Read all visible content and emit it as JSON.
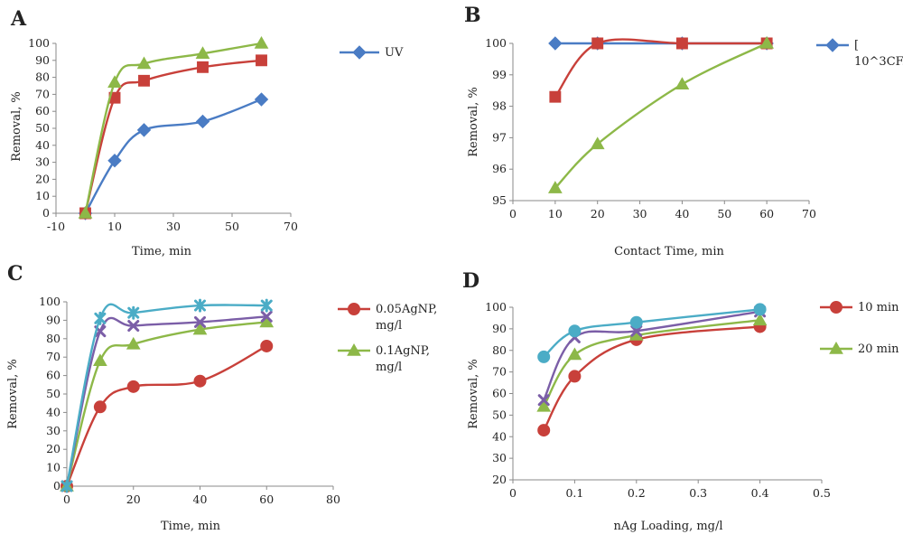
{
  "chart_data": [
    {
      "panel_label": "A",
      "type": "line",
      "xlabel": "Time, min",
      "ylabel": "Removal, %",
      "xlim": [
        -10,
        70
      ],
      "ylim": [
        0,
        100
      ],
      "xticks": [
        -10,
        10,
        30,
        50,
        70
      ],
      "yticks": [
        0,
        10,
        20,
        30,
        40,
        50,
        60,
        70,
        80,
        90,
        100
      ],
      "grid": false,
      "legend_position": "right",
      "series": [
        {
          "name": "UV",
          "color": "#4a7cc4",
          "marker": "diamond",
          "x": [
            0,
            10,
            20,
            40,
            60
          ],
          "values": [
            0,
            31,
            49,
            54,
            67
          ]
        },
        {
          "color": "#c8403a",
          "marker": "square",
          "x": [
            0,
            10,
            20,
            40,
            60
          ],
          "values": [
            0,
            68,
            78,
            86,
            90
          ]
        },
        {
          "color": "#8db848",
          "marker": "triangle",
          "x": [
            0,
            10,
            20,
            40,
            60
          ],
          "values": [
            0,
            77,
            88,
            94,
            100
          ]
        }
      ]
    },
    {
      "panel_label": "B",
      "type": "line",
      "xlabel": "Contact Time, min",
      "ylabel": "Removal, %",
      "xlim": [
        0,
        70
      ],
      "ylim": [
        95,
        100
      ],
      "xticks": [
        0,
        10,
        20,
        30,
        40,
        50,
        60,
        70
      ],
      "yticks": [
        95,
        96,
        97,
        98,
        99,
        100
      ],
      "grid": false,
      "legend_position": "right",
      "series": [
        {
          "name": "[\n10^3CF...",
          "color": "#4a7cc4",
          "marker": "diamond",
          "x": [
            10,
            20,
            40,
            60
          ],
          "values": [
            100,
            100,
            100,
            100
          ]
        },
        {
          "color": "#c8403a",
          "marker": "square",
          "x": [
            10,
            20,
            40,
            60
          ],
          "values": [
            98.3,
            100,
            100,
            100
          ]
        },
        {
          "color": "#8db848",
          "marker": "triangle",
          "x": [
            10,
            20,
            40,
            60
          ],
          "values": [
            95.4,
            96.8,
            98.7,
            100
          ]
        }
      ]
    },
    {
      "panel_label": "C",
      "type": "line",
      "xlabel": "Time, min",
      "ylabel": "Removal, %",
      "xlim": [
        0,
        80
      ],
      "ylim": [
        0,
        100
      ],
      "xticks": [
        0,
        20,
        40,
        60,
        80
      ],
      "yticks": [
        0,
        10,
        20,
        30,
        40,
        50,
        60,
        70,
        80,
        90,
        100
      ],
      "grid": false,
      "legend_position": "right",
      "series": [
        {
          "name": "0.05AgNP,\nmg/l",
          "color": "#c8403a",
          "marker": "circle",
          "x": [
            0,
            10,
            20,
            40,
            60
          ],
          "values": [
            0,
            43,
            54,
            57,
            76
          ]
        },
        {
          "name": "0.1AgNP,\nmg/l",
          "color": "#8db848",
          "marker": "triangle",
          "x": [
            0,
            10,
            20,
            40,
            60
          ],
          "values": [
            0,
            68,
            77,
            85,
            89
          ]
        },
        {
          "color": "#7b5ea7",
          "marker": "x",
          "x": [
            0,
            10,
            20,
            40,
            60
          ],
          "values": [
            0,
            84,
            87,
            89,
            92
          ]
        },
        {
          "color": "#4bacc6",
          "marker": "star",
          "x": [
            0,
            10,
            20,
            40,
            60
          ],
          "values": [
            0,
            91,
            94,
            98,
            98
          ]
        }
      ]
    },
    {
      "panel_label": "D",
      "type": "line",
      "xlabel": "nAg Loading, mg/l",
      "ylabel": "Removal, %",
      "xlim": [
        0,
        0.5
      ],
      "ylim": [
        20,
        100
      ],
      "xticks": [
        0,
        0.1,
        0.2,
        0.3,
        0.4,
        0.5
      ],
      "yticks": [
        20,
        30,
        40,
        50,
        60,
        70,
        80,
        90,
        100
      ],
      "grid": false,
      "legend_position": "right",
      "series": [
        {
          "name": "10 min",
          "color": "#c8403a",
          "marker": "circle",
          "x": [
            0.05,
            0.1,
            0.2,
            0.4
          ],
          "values": [
            43,
            68,
            85,
            91
          ]
        },
        {
          "name": "20 min",
          "color": "#8db848",
          "marker": "triangle",
          "x": [
            0.05,
            0.1,
            0.2,
            0.4
          ],
          "values": [
            54,
            78,
            87,
            94
          ]
        },
        {
          "color": "#7b5ea7",
          "marker": "x",
          "x": [
            0.05,
            0.1,
            0.2,
            0.4
          ],
          "values": [
            57,
            86,
            89,
            98
          ]
        },
        {
          "color": "#4bacc6",
          "marker": "circle",
          "x": [
            0.05,
            0.1,
            0.2,
            0.4
          ],
          "values": [
            77,
            89,
            93,
            99
          ]
        }
      ]
    }
  ]
}
